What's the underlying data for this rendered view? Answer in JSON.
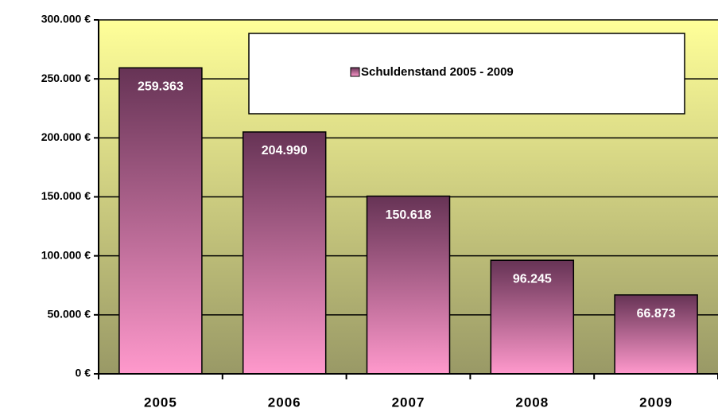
{
  "chart_data": {
    "type": "bar",
    "categories": [
      "2005",
      "2006",
      "2007",
      "2008",
      "2009"
    ],
    "series": [
      {
        "name": "Schuldenstand 2005 - 2009",
        "color": "#ff99cc",
        "values": [
          259363,
          204990,
          150618,
          96245,
          66873
        ],
        "value_labels": [
          "259.363",
          "204.990",
          "150.618",
          "96.245",
          "66.873"
        ]
      }
    ],
    "ylim": [
      0,
      300000
    ],
    "yticks": [
      {
        "value": 0,
        "label": "0 €"
      },
      {
        "value": 50000,
        "label": "50.000 €"
      },
      {
        "value": 100000,
        "label": "100.000 €"
      },
      {
        "value": 150000,
        "label": "150.000 €"
      },
      {
        "value": 200000,
        "label": "200.000 €"
      },
      {
        "value": 250000,
        "label": "250.000 €"
      },
      {
        "value": 300000,
        "label": "300.000 €"
      }
    ],
    "grid": true,
    "legend": "top-right"
  }
}
